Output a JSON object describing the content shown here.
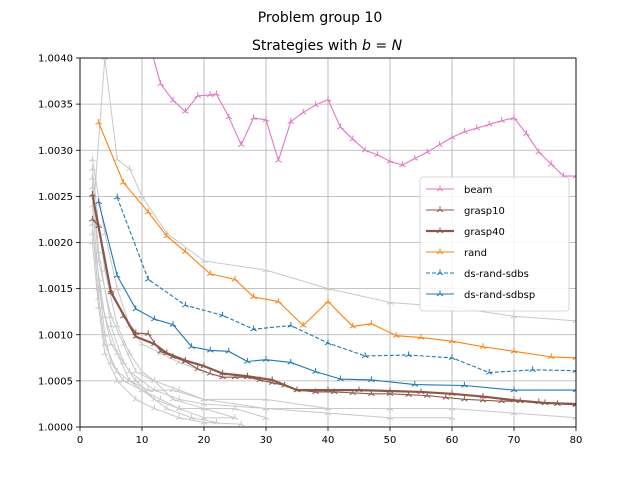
{
  "chart_data": {
    "type": "line",
    "suptitle": "Problem group 10",
    "title_prefix": "Strategies with ",
    "title_math": "b = N",
    "xlabel": "",
    "ylabel": "",
    "xlim": [
      0,
      80
    ],
    "ylim": [
      1.0,
      1.004
    ],
    "xticks": [
      0,
      10,
      20,
      30,
      40,
      50,
      60,
      70,
      80
    ],
    "yticks": [
      1.0,
      1.0005,
      1.001,
      1.0015,
      1.002,
      1.0025,
      1.003,
      1.0035,
      1.004
    ],
    "ytick_labels": [
      "1.0000",
      "1.0005",
      "1.0010",
      "1.0015",
      "1.0020",
      "1.0025",
      "1.0030",
      "1.0035",
      "1.0040"
    ],
    "grid": true,
    "legend_position": "center-right",
    "series": [
      {
        "name": "beam",
        "color": "#e377c2",
        "dashed": false,
        "width": 1,
        "x": [
          11,
          13,
          15,
          17,
          19,
          21,
          22,
          24,
          26,
          28,
          30,
          32,
          34,
          36,
          38,
          40,
          42,
          44,
          46,
          48,
          50,
          52,
          54,
          56,
          58,
          60,
          62,
          64,
          66,
          68,
          70,
          72,
          74,
          76,
          78,
          80
        ],
        "y": [
          1.0042,
          1.00372,
          1.00354,
          1.00342,
          1.00359,
          1.0036,
          1.00361,
          1.00336,
          1.00306,
          1.00335,
          1.00333,
          1.00289,
          1.00331,
          1.00341,
          1.00349,
          1.00355,
          1.00325,
          1.00312,
          1.003,
          1.00295,
          1.00288,
          1.00284,
          1.00291,
          1.00298,
          1.00306,
          1.00314,
          1.0032,
          1.00324,
          1.00328,
          1.00332,
          1.00335,
          1.00318,
          1.00298,
          1.00285,
          1.00272,
          1.00272
        ]
      },
      {
        "name": "grasp10",
        "color": "#8c564b",
        "dashed": false,
        "width": 1,
        "x": [
          2,
          3,
          5,
          7,
          9,
          11,
          13,
          15,
          17,
          19,
          21,
          23,
          25,
          27,
          29,
          31,
          33,
          35,
          38,
          41,
          44,
          47,
          50,
          53,
          56,
          59,
          62,
          65,
          68,
          71,
          74,
          77,
          80
        ],
        "y": [
          1.00225,
          1.00218,
          1.00148,
          1.0012,
          1.00102,
          1.00101,
          1.00082,
          1.00076,
          1.00071,
          1.00063,
          1.00058,
          1.00054,
          1.00054,
          1.00054,
          1.00051,
          1.00048,
          1.00045,
          1.0004,
          1.00038,
          1.00038,
          1.00037,
          1.00036,
          1.00036,
          1.00035,
          1.00034,
          1.00032,
          1.0003,
          1.00029,
          1.00028,
          1.00028,
          1.00027,
          1.00025,
          1.00024
        ]
      },
      {
        "name": "grasp40",
        "color": "#8c564b",
        "dashed": false,
        "width": 2,
        "x": [
          2,
          5,
          9,
          12,
          14,
          17,
          20,
          23,
          27,
          31,
          35,
          40,
          45,
          50,
          55,
          60,
          65,
          70,
          75,
          80
        ],
        "y": [
          1.00252,
          1.00146,
          1.00098,
          1.0009,
          1.0008,
          1.00072,
          1.00066,
          1.00058,
          1.00055,
          1.00051,
          1.0004,
          1.0004,
          1.0004,
          1.00039,
          1.00038,
          1.00036,
          1.00033,
          1.00029,
          1.00026,
          1.00025
        ]
      },
      {
        "name": "rand",
        "color": "#ff7f0e",
        "dashed": false,
        "width": 1,
        "x": [
          3,
          7,
          11,
          14,
          17,
          21,
          25,
          28,
          32,
          36,
          40,
          44,
          47,
          51,
          55,
          60,
          65,
          70,
          76,
          80
        ],
        "y": [
          1.0033,
          1.00265,
          1.00233,
          1.00207,
          1.0019,
          1.00166,
          1.0016,
          1.00141,
          1.00136,
          1.0011,
          1.00136,
          1.00109,
          1.00112,
          1.00099,
          1.00097,
          1.00093,
          1.00087,
          1.00082,
          1.00076,
          1.00075
        ]
      },
      {
        "name": "ds-rand-sdbs",
        "color": "#1f77b4",
        "dashed": true,
        "width": 1,
        "x": [
          6,
          11,
          17,
          23,
          28,
          34,
          40,
          46,
          53,
          60,
          66,
          73,
          80
        ],
        "y": [
          1.00249,
          1.0016,
          1.00132,
          1.00121,
          1.00106,
          1.0011,
          1.00091,
          1.00077,
          1.00078,
          1.00075,
          1.00059,
          1.00062,
          1.00061
        ]
      },
      {
        "name": "ds-rand-sdbsp",
        "color": "#1f77b4",
        "dashed": false,
        "width": 1,
        "x": [
          3,
          6,
          9,
          12,
          15,
          18,
          21,
          24,
          27,
          30,
          34,
          38,
          42,
          47,
          54,
          62,
          70,
          80
        ],
        "y": [
          1.00244,
          1.00164,
          1.00128,
          1.00117,
          1.00111,
          1.00087,
          1.00083,
          1.00082,
          1.00071,
          1.00073,
          1.0007,
          1.0006,
          1.00052,
          1.00051,
          1.00046,
          1.00045,
          1.0004,
          1.0004
        ]
      }
    ],
    "background_series_color": "#c8c8c8",
    "background_series": [
      {
        "x": [
          2,
          4,
          6,
          8,
          10,
          14,
          20,
          30,
          40,
          50,
          60,
          70,
          80
        ],
        "y": [
          1.0022,
          1.004,
          1.0029,
          1.0028,
          1.0025,
          1.0021,
          1.0018,
          1.0017,
          1.0015,
          1.00135,
          1.0013,
          1.0012,
          1.00115
        ]
      },
      {
        "x": [
          2,
          4,
          6,
          8,
          10,
          13,
          16,
          20
        ],
        "y": [
          1.0029,
          1.0021,
          1.0015,
          1.0011,
          1.0009,
          1.0008,
          1.0007,
          1.0006
        ]
      },
      {
        "x": [
          2,
          3,
          4,
          6,
          8,
          10,
          12,
          16,
          20,
          30,
          40
        ],
        "y": [
          1.0028,
          1.0022,
          1.0017,
          1.0011,
          1.0008,
          1.0006,
          1.0005,
          1.0004,
          1.0003,
          1.0002,
          1.0002
        ]
      },
      {
        "x": [
          2,
          3,
          5,
          7,
          9,
          12,
          15,
          20,
          25,
          30
        ],
        "y": [
          1.0026,
          1.0018,
          1.0012,
          1.0009,
          1.0006,
          1.0005,
          1.0003,
          1.0002,
          1.0002,
          1.0001
        ]
      },
      {
        "x": [
          2,
          3,
          4,
          5,
          7,
          10,
          13,
          16,
          20,
          25
        ],
        "y": [
          1.0024,
          1.0016,
          1.001,
          1.0007,
          1.0005,
          1.0004,
          1.0003,
          1.0002,
          1.0002,
          1.0001
        ]
      },
      {
        "x": [
          2,
          3,
          4,
          6,
          8,
          11,
          15,
          20,
          30,
          40,
          50,
          60,
          70,
          80
        ],
        "y": [
          1.0022,
          1.0014,
          1.0009,
          1.0006,
          1.0005,
          1.0004,
          1.0004,
          1.0003,
          1.0003,
          1.0002,
          1.0002,
          1.0002,
          1.00015,
          1.0001
        ]
      },
      {
        "x": [
          2,
          3,
          5,
          7,
          9,
          12,
          16,
          20,
          25
        ],
        "y": [
          1.0027,
          1.0019,
          1.0011,
          1.0007,
          1.0005,
          1.0003,
          1.0002,
          1.0001,
          1.0001
        ]
      },
      {
        "x": [
          2,
          4,
          6,
          8,
          10,
          14,
          18,
          22
        ],
        "y": [
          1.0021,
          1.0012,
          1.0008,
          1.0005,
          1.0004,
          1.0002,
          1.0001,
          1.00005
        ]
      },
      {
        "x": [
          3,
          5,
          8,
          12,
          16,
          20,
          30,
          40,
          50,
          60
        ],
        "y": [
          1.0015,
          1.0009,
          1.0006,
          1.0004,
          1.0003,
          1.00025,
          1.0002,
          1.00015,
          1.0001,
          1.0001
        ]
      },
      {
        "x": [
          2,
          3,
          4,
          6,
          9,
          12,
          16,
          20,
          26
        ],
        "y": [
          1.002,
          1.0013,
          1.0008,
          1.0005,
          1.0003,
          1.0002,
          1.0001,
          1.00005,
          1.00003
        ]
      }
    ]
  }
}
